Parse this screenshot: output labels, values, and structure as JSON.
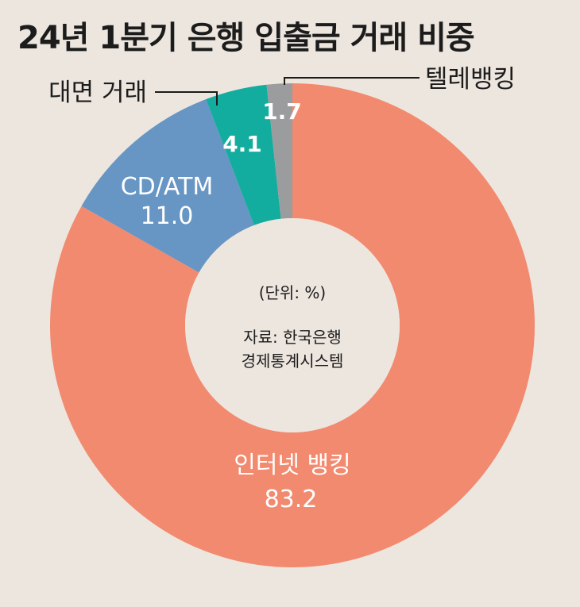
{
  "chart_data": {
    "type": "pie",
    "title": "24년 1분기 은행 입출금 거래 비중",
    "categories": [
      "인터넷 뱅킹",
      "CD/ATM",
      "대면 거래",
      "텔레뱅킹"
    ],
    "values": [
      83.2,
      11.0,
      4.1,
      1.7
    ],
    "value_labels": [
      "83.2",
      "11.0",
      "4.1",
      "1.7"
    ],
    "colors": [
      "#f28a6f",
      "#6795c4",
      "#12ad9e",
      "#9b9c9e"
    ],
    "unit_note": "(단위: %)",
    "source_line1": "자료: 한국은행",
    "source_line2": "경제통계시스템"
  }
}
